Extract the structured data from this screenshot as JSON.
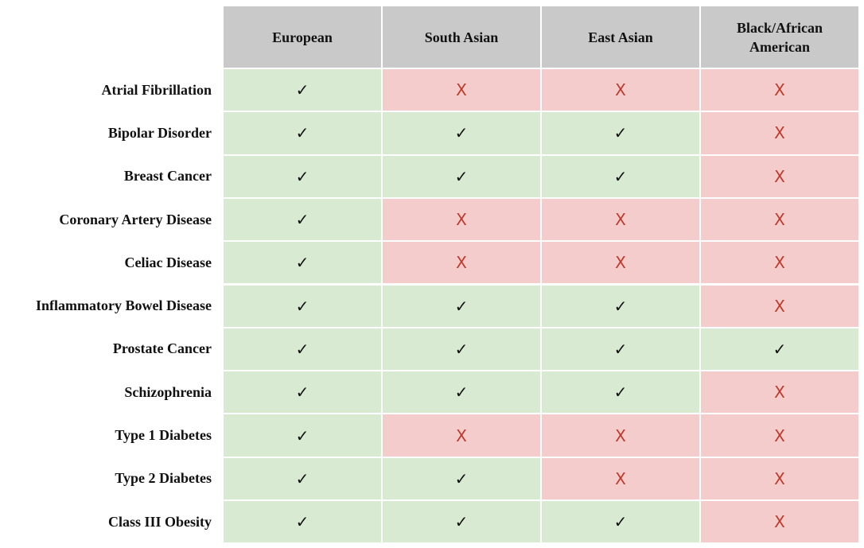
{
  "table": {
    "header": [
      "European",
      "South Asian",
      "East Asian",
      "Black/African American"
    ],
    "header_fill": "#c9c9c9",
    "rows": [
      {
        "label": "Atrial Fibrillation",
        "cells": [
          "✓",
          "X",
          "X",
          "X"
        ],
        "fills": [
          "#d9ead3",
          "#f4cccc",
          "#f4cccc",
          "#f4cccc"
        ],
        "inks": [
          "#111111",
          "#c0392b",
          "#c0392b",
          "#c0392b"
        ]
      },
      {
        "label": "Bipolar Disorder",
        "cells": [
          "✓",
          "✓",
          "✓",
          "X"
        ],
        "fills": [
          "#d9ead3",
          "#d9ead3",
          "#d9ead3",
          "#f4cccc"
        ],
        "inks": [
          "#111111",
          "#111111",
          "#111111",
          "#c0392b"
        ]
      },
      {
        "label": "Breast Cancer",
        "cells": [
          "✓",
          "✓",
          "✓",
          "X"
        ],
        "fills": [
          "#d9ead3",
          "#d9ead3",
          "#d9ead3",
          "#f4cccc"
        ],
        "inks": [
          "#111111",
          "#111111",
          "#111111",
          "#c0392b"
        ]
      },
      {
        "label": "Coronary Artery Disease",
        "cells": [
          "✓",
          "X",
          "X",
          "X"
        ],
        "fills": [
          "#d9ead3",
          "#f4cccc",
          "#f4cccc",
          "#f4cccc"
        ],
        "inks": [
          "#111111",
          "#c0392b",
          "#c0392b",
          "#c0392b"
        ]
      },
      {
        "label": "Celiac Disease",
        "cells": [
          "✓",
          "X",
          "X",
          "X"
        ],
        "fills": [
          "#d9ead3",
          "#f4cccc",
          "#f4cccc",
          "#f4cccc"
        ],
        "inks": [
          "#111111",
          "#c0392b",
          "#c0392b",
          "#c0392b"
        ]
      },
      {
        "label": "Inflammatory Bowel Disease",
        "cells": [
          "✓",
          "✓",
          "✓",
          "X"
        ],
        "fills": [
          "#d9ead3",
          "#d9ead3",
          "#d9ead3",
          "#f4cccc"
        ],
        "inks": [
          "#111111",
          "#111111",
          "#111111",
          "#c0392b"
        ]
      },
      {
        "label": "Prostate Cancer",
        "cells": [
          "✓",
          "✓",
          "✓",
          "✓"
        ],
        "fills": [
          "#d9ead3",
          "#d9ead3",
          "#d9ead3",
          "#d9ead3"
        ],
        "inks": [
          "#111111",
          "#111111",
          "#111111",
          "#111111"
        ]
      },
      {
        "label": "Schizophrenia",
        "cells": [
          "✓",
          "✓",
          "✓",
          "X"
        ],
        "fills": [
          "#d9ead3",
          "#d9ead3",
          "#d9ead3",
          "#f4cccc"
        ],
        "inks": [
          "#111111",
          "#111111",
          "#111111",
          "#c0392b"
        ]
      },
      {
        "label": "Type 1 Diabetes",
        "cells": [
          "✓",
          "X",
          "X",
          "X"
        ],
        "fills": [
          "#d9ead3",
          "#f4cccc",
          "#f4cccc",
          "#f4cccc"
        ],
        "inks": [
          "#111111",
          "#c0392b",
          "#c0392b",
          "#c0392b"
        ]
      },
      {
        "label": "Type 2 Diabetes",
        "cells": [
          "✓",
          "✓",
          "X",
          "X"
        ],
        "fills": [
          "#d9ead3",
          "#d9ead3",
          "#f4cccc",
          "#f4cccc"
        ],
        "inks": [
          "#111111",
          "#111111",
          "#c0392b",
          "#c0392b"
        ]
      },
      {
        "label": "Class III Obesity",
        "cells": [
          "✓",
          "✓",
          "✓",
          "X"
        ],
        "fills": [
          "#d9ead3",
          "#d9ead3",
          "#d9ead3",
          "#f4cccc"
        ],
        "inks": [
          "#111111",
          "#111111",
          "#111111",
          "#c0392b"
        ]
      }
    ]
  }
}
